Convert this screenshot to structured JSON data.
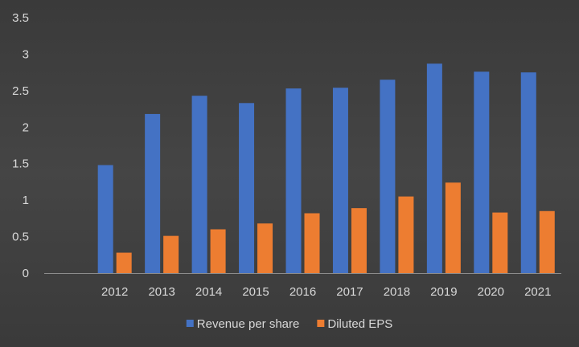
{
  "chart_data": {
    "type": "bar",
    "title": "",
    "xlabel": "",
    "ylabel": "",
    "categories": [
      "",
      "2012",
      "2013",
      "2014",
      "2015",
      "2016",
      "2017",
      "2018",
      "2019",
      "2020",
      "2021"
    ],
    "series": [
      {
        "name": "Revenue per share",
        "color": "#4472c4",
        "values": [
          null,
          1.48,
          2.18,
          2.43,
          2.33,
          2.53,
          2.54,
          2.65,
          2.87,
          2.76,
          2.75
        ]
      },
      {
        "name": "Diluted EPS",
        "color": "#ed7d31",
        "values": [
          null,
          0.28,
          0.51,
          0.6,
          0.68,
          0.82,
          0.89,
          1.05,
          1.24,
          0.83,
          0.85
        ]
      }
    ],
    "ylim": [
      0,
      3.5
    ],
    "yticks": [
      "0",
      "0.5",
      "1",
      "1.5",
      "2",
      "2.5",
      "3",
      "3.5"
    ],
    "grid": false,
    "legend_position": "bottom",
    "background": "#404040"
  }
}
